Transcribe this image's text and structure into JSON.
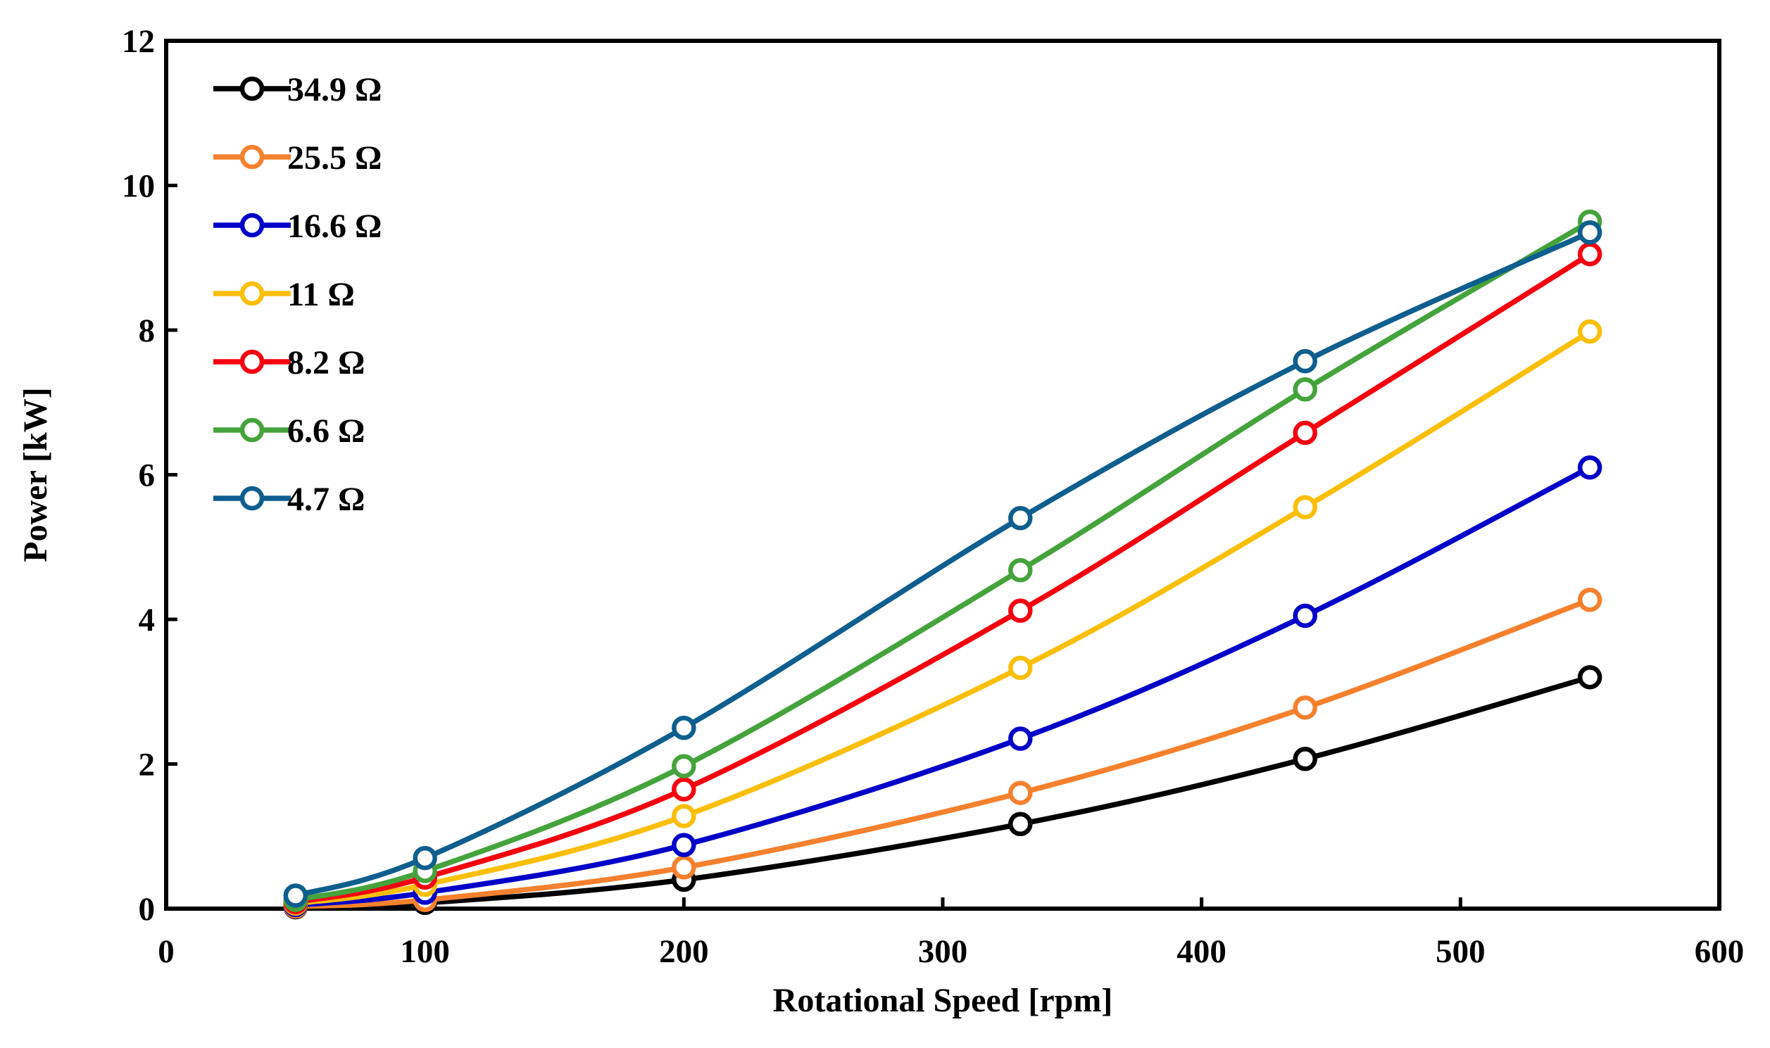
{
  "chart_data": {
    "type": "line",
    "title": "",
    "xlabel": "Rotational Speed [rpm]",
    "ylabel": "Power [kW]",
    "xlim": [
      0,
      600
    ],
    "ylim": [
      0,
      12
    ],
    "xticks": [
      0,
      100,
      200,
      300,
      400,
      500,
      600
    ],
    "yticks": [
      0,
      2,
      4,
      6,
      8,
      10,
      12
    ],
    "xtick_labels": [
      "0",
      "100",
      "200",
      "300",
      "400",
      "500",
      "600"
    ],
    "ytick_labels": [
      "0",
      "2",
      "4",
      "6",
      "8",
      "10",
      "12"
    ],
    "grid": false,
    "legend_position": "top-left",
    "x": [
      50,
      100,
      200,
      330,
      440,
      550
    ],
    "series": [
      {
        "name": "34.9 Ω",
        "color": "#000000",
        "values": [
          0.02,
          0.08,
          0.4,
          1.17,
          2.07,
          3.2
        ]
      },
      {
        "name": "25.5 Ω",
        "color": "#F5812E",
        "values": [
          0.03,
          0.12,
          0.57,
          1.6,
          2.78,
          4.27
        ]
      },
      {
        "name": "16.6 Ω",
        "color": "#0000C8",
        "values": [
          0.05,
          0.22,
          0.88,
          2.35,
          4.05,
          6.1
        ]
      },
      {
        "name": "11 Ω",
        "color": "#FBBF0A",
        "values": [
          0.07,
          0.33,
          1.28,
          3.33,
          5.55,
          7.98
        ]
      },
      {
        "name": "8.2 Ω",
        "color": "#F5000F",
        "values": [
          0.09,
          0.43,
          1.65,
          4.12,
          6.58,
          9.05
        ]
      },
      {
        "name": "6.6 Ω",
        "color": "#45A33C",
        "values": [
          0.12,
          0.52,
          1.97,
          4.68,
          7.18,
          9.5
        ]
      },
      {
        "name": "4.7 Ω",
        "color": "#0E5E8E",
        "values": [
          0.18,
          0.7,
          2.5,
          5.4,
          7.57,
          9.35
        ]
      }
    ]
  }
}
